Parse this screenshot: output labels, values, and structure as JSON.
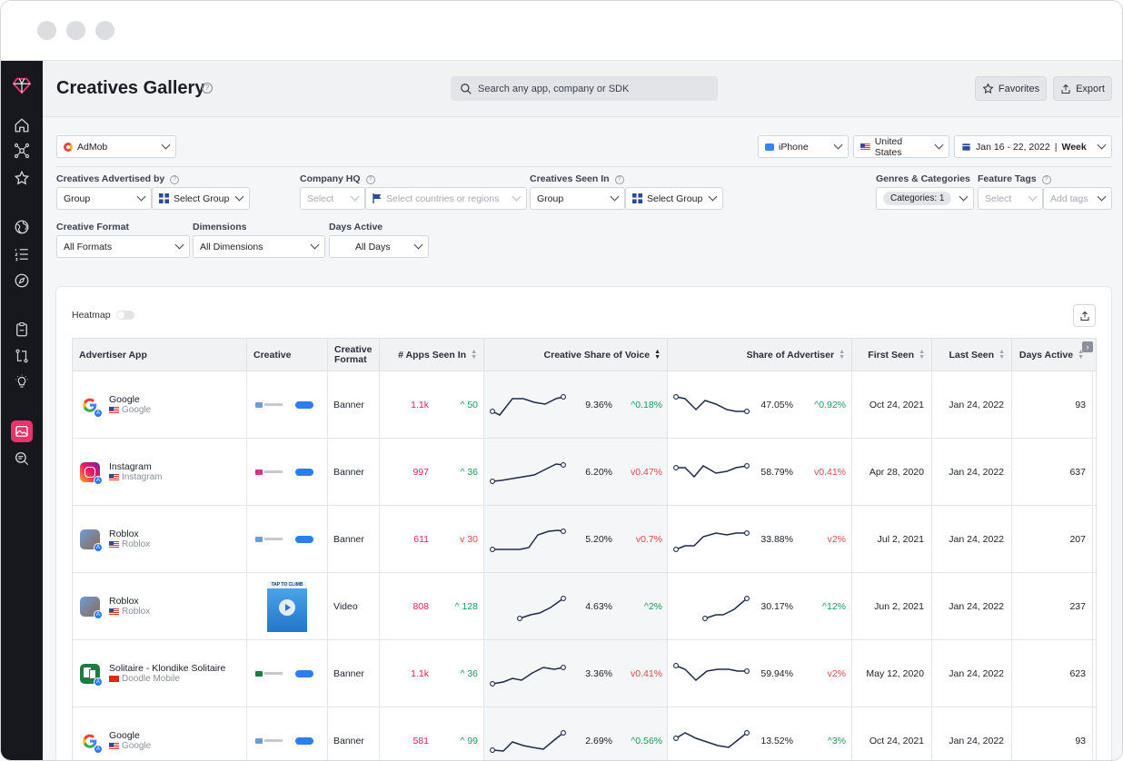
{
  "header": {
    "title": "Creatives Gallery",
    "search_placeholder": "Search any app, company or SDK",
    "favorites_label": "Favorites",
    "export_label": "Export"
  },
  "filters": {
    "network": "AdMob",
    "device": "iPhone",
    "country": "United States",
    "date_range": "Jan 16 - 22, 2022",
    "granularity": "Week",
    "advertised_by_label": "Creatives Advertised by",
    "advertised_by_group": "Group",
    "advertised_by_select": "Select Group",
    "company_hq_label": "Company HQ",
    "company_hq_select": "Select",
    "company_hq_countries": "Select countries or regions",
    "seen_in_label": "Creatives Seen In",
    "seen_in_group": "Group",
    "seen_in_select": "Select Group",
    "genres_label": "Genres & Categories",
    "genres_value": "Categories: 1",
    "feature_tags_label": "Feature Tags",
    "feature_tags_select": "Select",
    "feature_tags_add": "Add tags",
    "format_label": "Creative Format",
    "format_value": "All Formats",
    "dimensions_label": "Dimensions",
    "dimensions_value": "All Dimensions",
    "days_active_label": "Days Active",
    "days_active_value": "All Days"
  },
  "table": {
    "heatmap_label": "Heatmap",
    "columns": [
      "Advertiser App",
      "Creative",
      "Creative Format",
      "# Apps Seen In",
      "Creative Share of Voice",
      "Share of Advertiser",
      "First Seen",
      "Last Seen",
      "Days Active"
    ],
    "rows": [
      {
        "app": "Google",
        "dev": "Google",
        "format": "Banner",
        "apps": "1.1k",
        "apps_delta": "50",
        "apps_dir": "up",
        "sov": "9.36%",
        "sov_delta": "0.18%",
        "sov_dir": "up",
        "soa": "47.05%",
        "soa_delta": "0.92%",
        "soa_dir": "up",
        "first": "Oct 24, 2021",
        "last": "Jan 24, 2022",
        "days": "93"
      },
      {
        "app": "Instagram",
        "dev": "Instagram",
        "format": "Banner",
        "apps": "997",
        "apps_delta": "36",
        "apps_dir": "up",
        "sov": "6.20%",
        "sov_delta": "0.47%",
        "sov_dir": "down",
        "soa": "58.79%",
        "soa_delta": "0.41%",
        "soa_dir": "down",
        "first": "Apr 28, 2020",
        "last": "Jan 24, 2022",
        "days": "637"
      },
      {
        "app": "Roblox",
        "dev": "Roblox",
        "format": "Banner",
        "apps": "611",
        "apps_delta": "30",
        "apps_dir": "down",
        "sov": "5.20%",
        "sov_delta": "0.7%",
        "sov_dir": "down",
        "soa": "33.88%",
        "soa_delta": "2%",
        "soa_dir": "down",
        "first": "Jul 2, 2021",
        "last": "Jan 24, 2022",
        "days": "207"
      },
      {
        "app": "Roblox",
        "dev": "Roblox",
        "format": "Video",
        "apps": "808",
        "apps_delta": "128",
        "apps_dir": "up",
        "sov": "4.63%",
        "sov_delta": "2%",
        "sov_dir": "up",
        "soa": "30.17%",
        "soa_delta": "12%",
        "soa_dir": "up",
        "first": "Jun 2, 2021",
        "last": "Jan 24, 2022",
        "days": "237",
        "video_caption": "TAP TO CLIMB"
      },
      {
        "app": "Solitaire - Klondike Solitaire",
        "dev": "Doodle Mobile",
        "format": "Banner",
        "apps": "1.1k",
        "apps_delta": "36",
        "apps_dir": "up",
        "sov": "3.36%",
        "sov_delta": "0.41%",
        "sov_dir": "down",
        "soa": "59.94%",
        "soa_delta": "2%",
        "soa_dir": "down",
        "first": "May 12, 2020",
        "last": "Jan 24, 2022",
        "days": "623"
      },
      {
        "app": "Google",
        "dev": "Google",
        "format": "Banner",
        "apps": "581",
        "apps_delta": "99",
        "apps_dir": "up",
        "sov": "2.69%",
        "sov_delta": "0.56%",
        "sov_dir": "up",
        "soa": "13.52%",
        "soa_delta": "3%",
        "soa_dir": "up",
        "first": "Oct 24, 2021",
        "last": "Jan 24, 2022",
        "days": "93"
      }
    ]
  },
  "colors": {
    "accent": "#e8336b",
    "up": "#1a9b59",
    "down": "#e04848",
    "rail": "#16181d"
  }
}
